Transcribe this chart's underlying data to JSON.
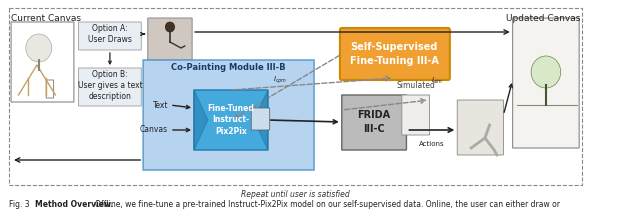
{
  "title_caption": "Fig. 3",
  "caption_bold": "Method Overview.",
  "caption_text": "Offline, we fine-tune a pre-trained Instruct-Pix2Pix model on our self-supervised data. Online, the user can either draw or",
  "repeat_text": "Repeat until user is satisfied",
  "current_canvas_label": "Current Canvas",
  "updated_canvas_label": "Updated Canvas",
  "option_a_text": "Option A:\nUser Draws",
  "option_b_text": "Option B:\nUser gives a text\ndescription",
  "copainting_label": "Co-Painting Module III-B",
  "finetune_label": "Fine-Tuned\nInstruct-\nPix2Pix",
  "frida_label": "FRIDA\nIII-C",
  "selfsuper_label": "Self-Supervised\nFine-Tuning III-A",
  "text_label": "Text",
  "canvas_label": "Canvas",
  "simulated_label": "Simulated",
  "actions_label": "Actions",
  "icpm_label": "I_cpm",
  "isim_label": "I_sim",
  "bg_color": "#ffffff",
  "copainting_bg": "#aaccee",
  "finetune_bg": "#55aadd",
  "frida_bg": "#bbbbbb",
  "selfsuper_bg": "#f0a030",
  "optionbox_bg": "#e8eef4",
  "arrow_color": "#222222",
  "dashed_color": "#888888",
  "border_color": "#444444",
  "tree_fill": "#d8e8c8",
  "tree_edge": "#668844",
  "fig_width": 6.4,
  "fig_height": 2.16
}
